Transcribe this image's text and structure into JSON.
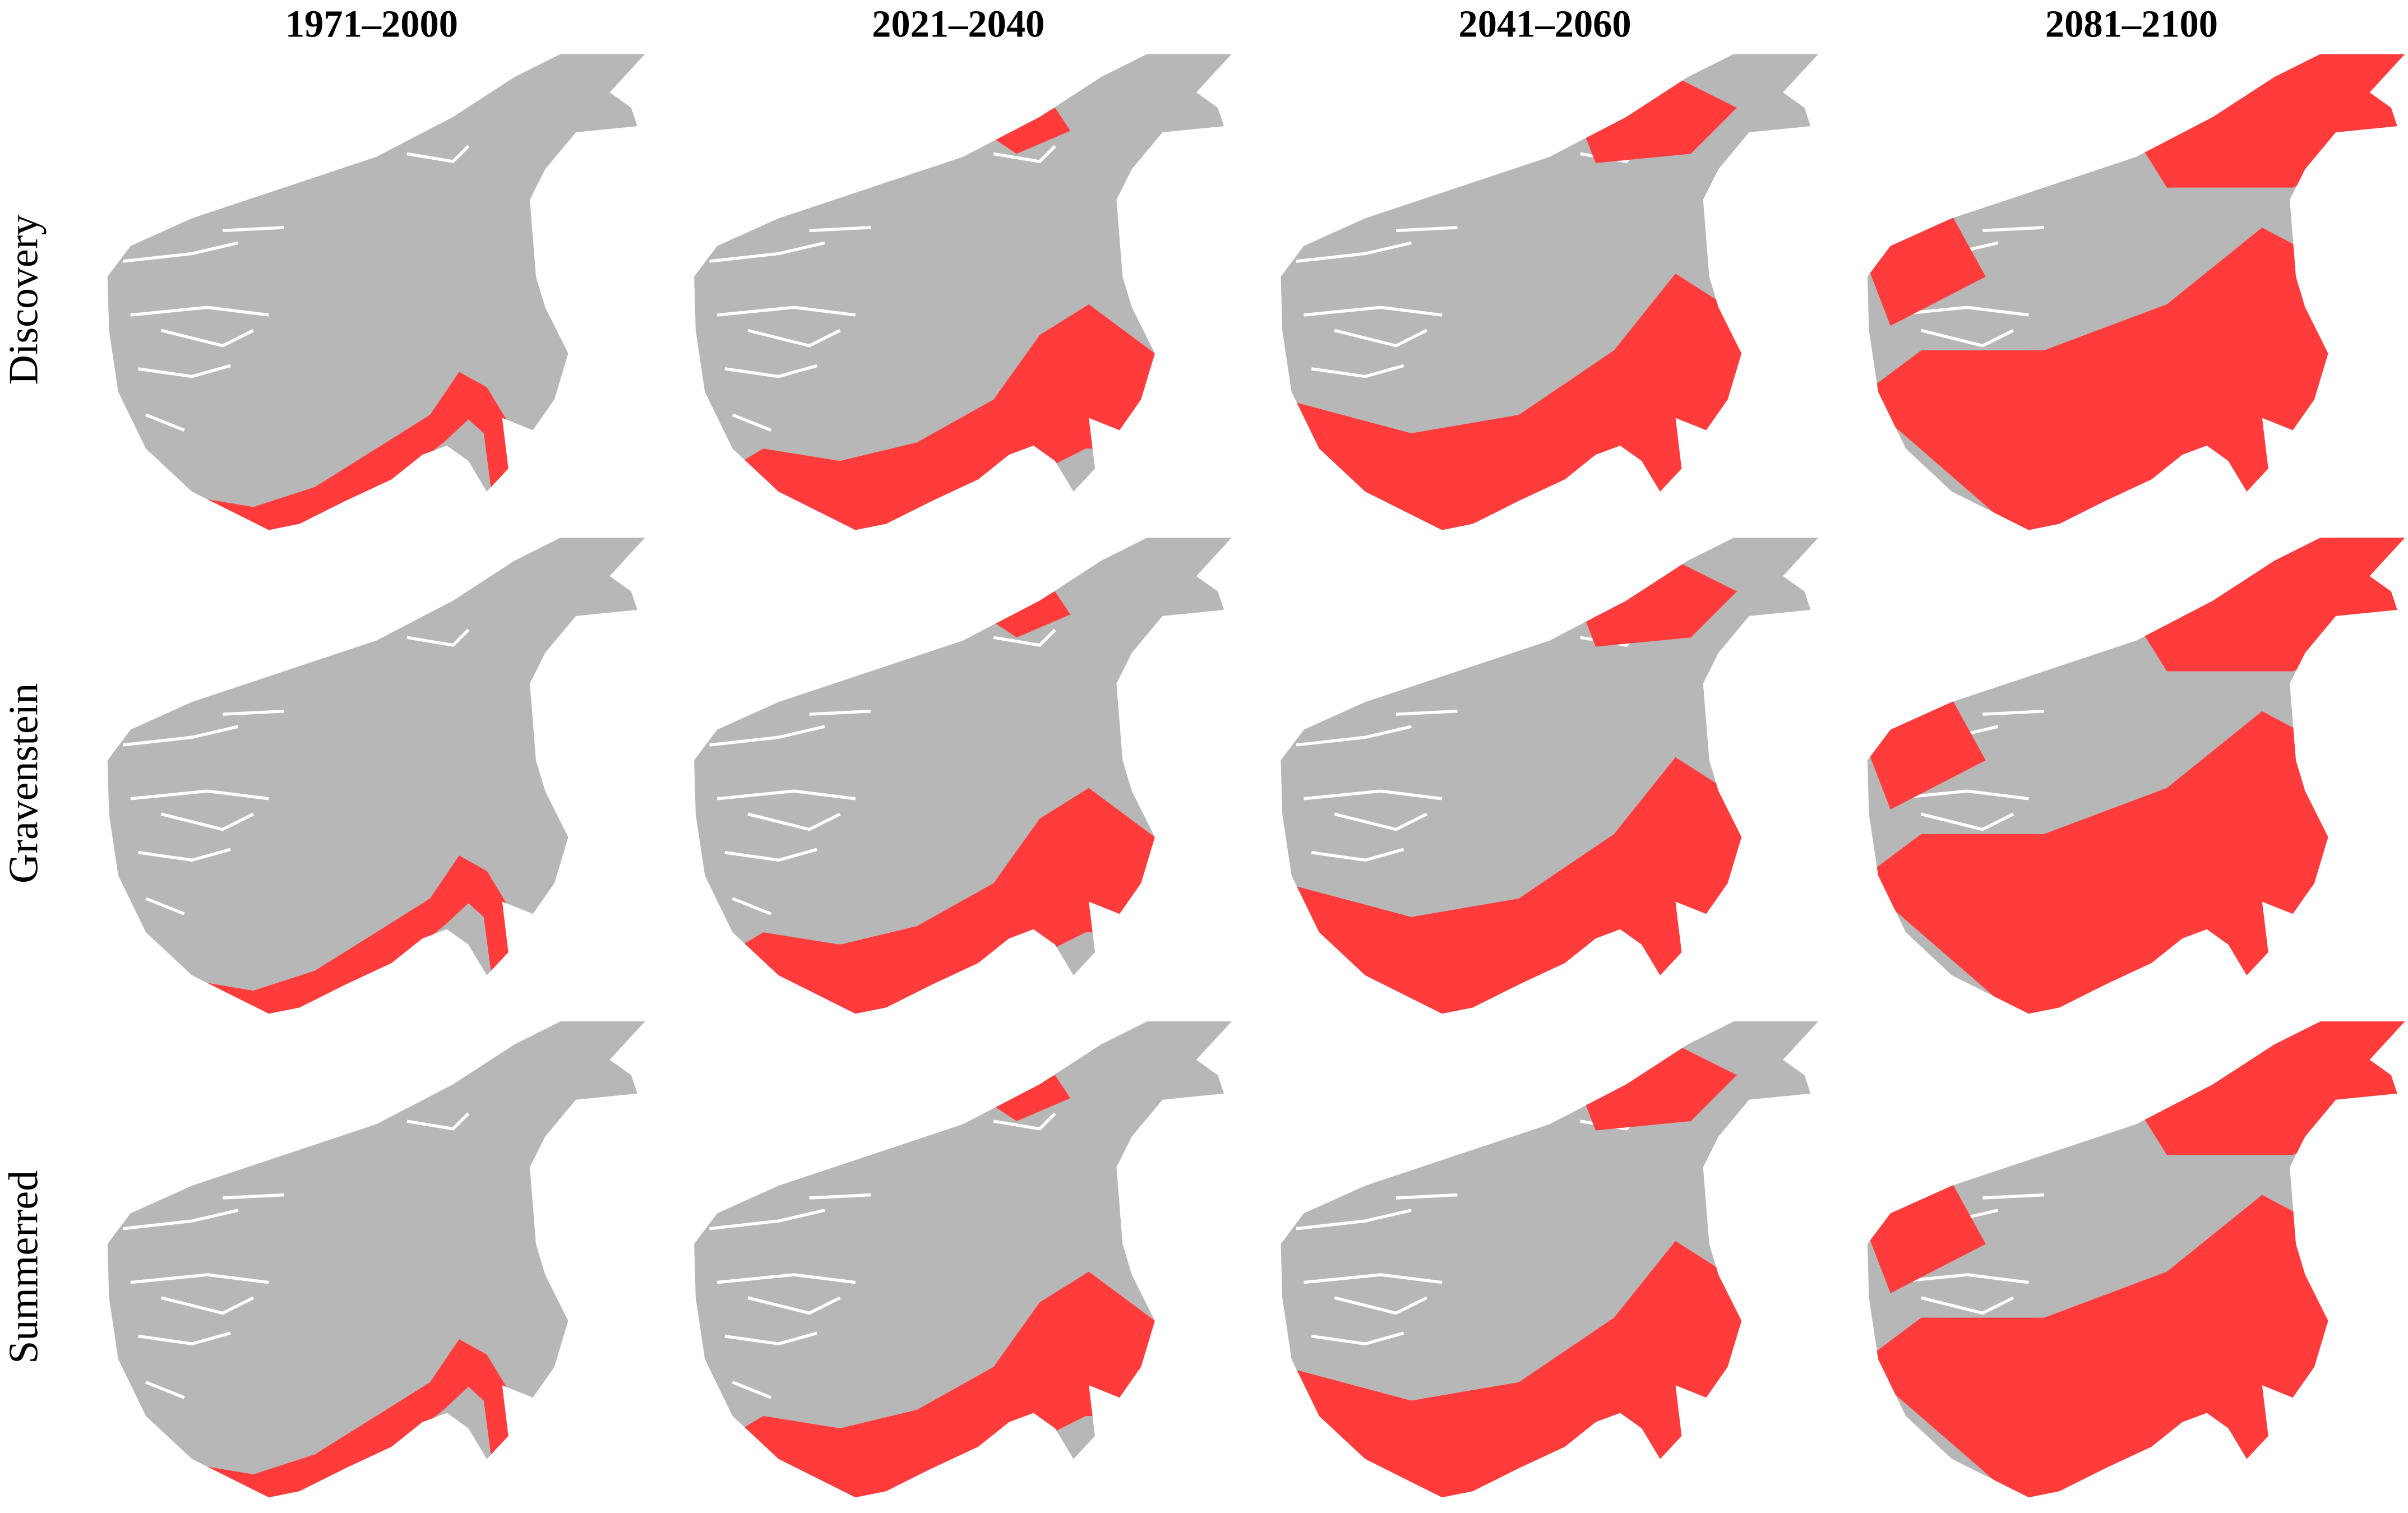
{
  "columns": [
    "1971–2000",
    "2021–2040",
    "2041–2060",
    "2081–2100"
  ],
  "rows": [
    "Discovery",
    "Gravenstein",
    "Summerred"
  ]
}
